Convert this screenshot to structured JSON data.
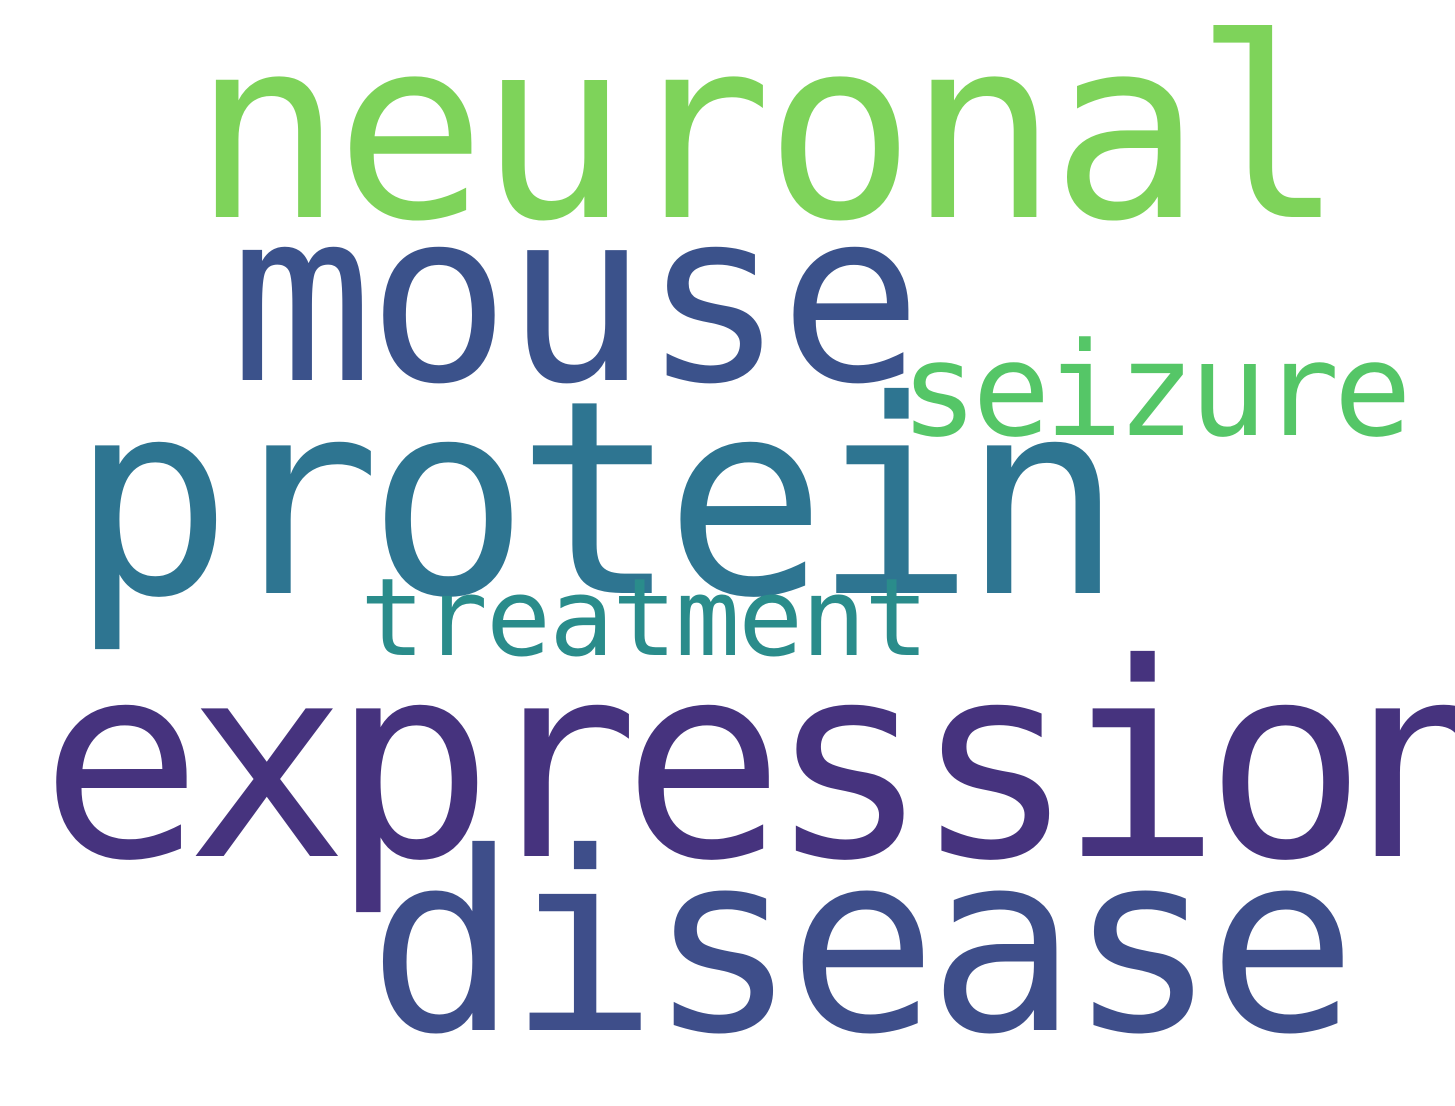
{
  "words": {
    "neuronal": {
      "text": "neuronal",
      "color": "#7ed35a"
    },
    "mouse": {
      "text": "mouse",
      "color": "#3b528b"
    },
    "seizure": {
      "text": "seizure",
      "color": "#55c667"
    },
    "protein": {
      "text": "protein",
      "color": "#2e7591"
    },
    "treatment": {
      "text": "treatment",
      "color": "#2a8c8b"
    },
    "expression": {
      "text": "expression",
      "color": "#46337e"
    },
    "disease": {
      "text": "disease",
      "color": "#3e4e8a"
    }
  }
}
